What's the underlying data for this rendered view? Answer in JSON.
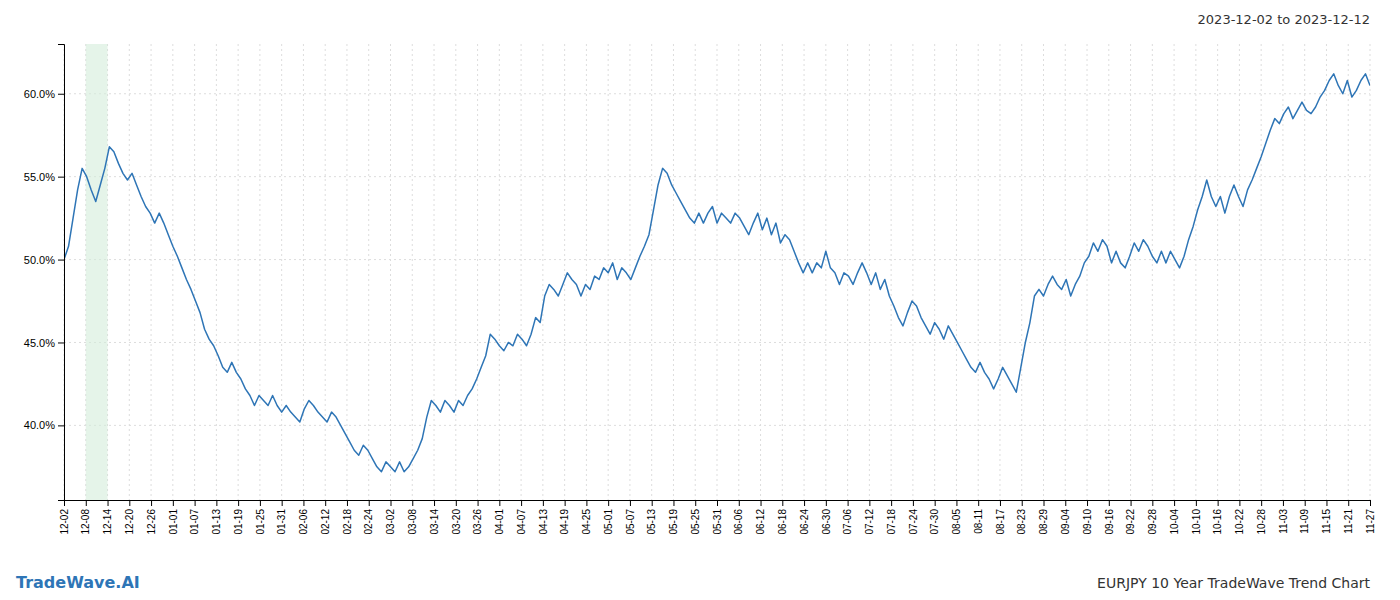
{
  "chart_data": {
    "type": "line",
    "title": "2023-12-02 to 2023-12-12",
    "annotations": [
      "TradeWave.AI",
      "EURJPY 10 Year TradeWave Trend Chart"
    ],
    "color": "#2e75b6",
    "grid": true,
    "highlight": {
      "xstart": 4.8,
      "xend": 9.6,
      "color": "#d4edda"
    },
    "xlim": [
      0,
      288
    ],
    "xticks": [
      {
        "value": 0,
        "label": "12-02"
      },
      {
        "value": 4.8,
        "label": "12-08"
      },
      {
        "value": 9.6,
        "label": "12-14"
      },
      {
        "value": 14.4,
        "label": "12-20"
      },
      {
        "value": 19.2,
        "label": "12-26"
      },
      {
        "value": 24,
        "label": "01-01"
      },
      {
        "value": 28.8,
        "label": "01-07"
      },
      {
        "value": 33.6,
        "label": "01-13"
      },
      {
        "value": 38.4,
        "label": "01-19"
      },
      {
        "value": 43.2,
        "label": "01-25"
      },
      {
        "value": 48,
        "label": "01-31"
      },
      {
        "value": 52.8,
        "label": "02-06"
      },
      {
        "value": 57.6,
        "label": "02-12"
      },
      {
        "value": 62.4,
        "label": "02-18"
      },
      {
        "value": 67.2,
        "label": "02-24"
      },
      {
        "value": 72,
        "label": "03-02"
      },
      {
        "value": 76.8,
        "label": "03-08"
      },
      {
        "value": 81.6,
        "label": "03-14"
      },
      {
        "value": 86.4,
        "label": "03-20"
      },
      {
        "value": 91.2,
        "label": "03-26"
      },
      {
        "value": 96,
        "label": "04-01"
      },
      {
        "value": 100.8,
        "label": "04-07"
      },
      {
        "value": 105.6,
        "label": "04-13"
      },
      {
        "value": 110.4,
        "label": "04-19"
      },
      {
        "value": 115.2,
        "label": "04-25"
      },
      {
        "value": 120,
        "label": "05-01"
      },
      {
        "value": 124.8,
        "label": "05-07"
      },
      {
        "value": 129.6,
        "label": "05-13"
      },
      {
        "value": 134.4,
        "label": "05-19"
      },
      {
        "value": 139.2,
        "label": "05-25"
      },
      {
        "value": 144,
        "label": "05-31"
      },
      {
        "value": 148.8,
        "label": "06-06"
      },
      {
        "value": 153.6,
        "label": "06-12"
      },
      {
        "value": 158.4,
        "label": "06-18"
      },
      {
        "value": 163.2,
        "label": "06-24"
      },
      {
        "value": 168,
        "label": "06-30"
      },
      {
        "value": 172.8,
        "label": "07-06"
      },
      {
        "value": 177.6,
        "label": "07-12"
      },
      {
        "value": 182.4,
        "label": "07-18"
      },
      {
        "value": 187.2,
        "label": "07-24"
      },
      {
        "value": 192,
        "label": "07-30"
      },
      {
        "value": 196.8,
        "label": "08-05"
      },
      {
        "value": 201.6,
        "label": "08-11"
      },
      {
        "value": 206.4,
        "label": "08-17"
      },
      {
        "value": 211.2,
        "label": "08-23"
      },
      {
        "value": 216,
        "label": "08-29"
      },
      {
        "value": 220.8,
        "label": "09-04"
      },
      {
        "value": 225.6,
        "label": "09-10"
      },
      {
        "value": 230.4,
        "label": "09-16"
      },
      {
        "value": 235.2,
        "label": "09-22"
      },
      {
        "value": 240,
        "label": "09-28"
      },
      {
        "value": 244.8,
        "label": "10-04"
      },
      {
        "value": 249.6,
        "label": "10-10"
      },
      {
        "value": 254.4,
        "label": "10-16"
      },
      {
        "value": 259.2,
        "label": "10-22"
      },
      {
        "value": 264,
        "label": "10-28"
      },
      {
        "value": 268.8,
        "label": "11-03"
      },
      {
        "value": 273.6,
        "label": "11-09"
      },
      {
        "value": 278.4,
        "label": "11-15"
      },
      {
        "value": 283.2,
        "label": "11-21"
      },
      {
        "value": 288,
        "label": "11-27"
      }
    ],
    "ylim": [
      35.5,
      63.0
    ],
    "yticks": [
      {
        "value": 40.0,
        "label": "40.0%"
      },
      {
        "value": 45.0,
        "label": "45.0%"
      },
      {
        "value": 50.0,
        "label": "50.0%"
      },
      {
        "value": 55.0,
        "label": "55.0%"
      },
      {
        "value": 60.0,
        "label": "60.0%"
      }
    ],
    "x": [
      0,
      1,
      2,
      3,
      4,
      5,
      6,
      7,
      8,
      9,
      10,
      11,
      12,
      13,
      14,
      15,
      16,
      17,
      18,
      19,
      20,
      21,
      22,
      23,
      24,
      25,
      26,
      27,
      28,
      29,
      30,
      31,
      32,
      33,
      34,
      35,
      36,
      37,
      38,
      39,
      40,
      41,
      42,
      43,
      44,
      45,
      46,
      47,
      48,
      49,
      50,
      51,
      52,
      53,
      54,
      55,
      56,
      57,
      58,
      59,
      60,
      61,
      62,
      63,
      64,
      65,
      66,
      67,
      68,
      69,
      70,
      71,
      72,
      73,
      74,
      75,
      76,
      77,
      78,
      79,
      80,
      81,
      82,
      83,
      84,
      85,
      86,
      87,
      88,
      89,
      90,
      91,
      92,
      93,
      94,
      95,
      96,
      97,
      98,
      99,
      100,
      101,
      102,
      103,
      104,
      105,
      106,
      107,
      108,
      109,
      110,
      111,
      112,
      113,
      114,
      115,
      116,
      117,
      118,
      119,
      120,
      121,
      122,
      123,
      124,
      125,
      126,
      127,
      128,
      129,
      130,
      131,
      132,
      133,
      134,
      135,
      136,
      137,
      138,
      139,
      140,
      141,
      142,
      143,
      144,
      145,
      146,
      147,
      148,
      149,
      150,
      151,
      152,
      153,
      154,
      155,
      156,
      157,
      158,
      159,
      160,
      161,
      162,
      163,
      164,
      165,
      166,
      167,
      168,
      169,
      170,
      171,
      172,
      173,
      174,
      175,
      176,
      177,
      178,
      179,
      180,
      181,
      182,
      183,
      184,
      185,
      186,
      187,
      188,
      189,
      190,
      191,
      192,
      193,
      194,
      195,
      196,
      197,
      198,
      199,
      200,
      201,
      202,
      203,
      204,
      205,
      206,
      207,
      208,
      209,
      210,
      211,
      212,
      213,
      214,
      215,
      216,
      217,
      218,
      219,
      220,
      221,
      222,
      223,
      224,
      225,
      226,
      227,
      228,
      229,
      230,
      231,
      232,
      233,
      234,
      235,
      236,
      237,
      238,
      239,
      240,
      241,
      242,
      243,
      244,
      245,
      246,
      247,
      248,
      249,
      250,
      251,
      252,
      253,
      254,
      255,
      256,
      257,
      258,
      259,
      260,
      261,
      262,
      263,
      264,
      265,
      266,
      267,
      268,
      269,
      270,
      271,
      272,
      273,
      274,
      275,
      276,
      277,
      278,
      279,
      280,
      281,
      282,
      283,
      284,
      285,
      286,
      287,
      288
    ],
    "values": [
      50.0,
      50.8,
      52.5,
      54.2,
      55.5,
      55.0,
      54.2,
      53.5,
      54.5,
      55.5,
      56.8,
      56.5,
      55.8,
      55.2,
      54.8,
      55.2,
      54.5,
      53.8,
      53.2,
      52.8,
      52.2,
      52.8,
      52.2,
      51.5,
      50.8,
      50.2,
      49.5,
      48.8,
      48.2,
      47.5,
      46.8,
      45.8,
      45.2,
      44.8,
      44.2,
      43.5,
      43.2,
      43.8,
      43.2,
      42.8,
      42.2,
      41.8,
      41.2,
      41.8,
      41.5,
      41.2,
      41.8,
      41.2,
      40.8,
      41.2,
      40.8,
      40.5,
      40.2,
      41.0,
      41.5,
      41.2,
      40.8,
      40.5,
      40.2,
      40.8,
      40.5,
      40.0,
      39.5,
      39.0,
      38.5,
      38.2,
      38.8,
      38.5,
      38.0,
      37.5,
      37.2,
      37.8,
      37.5,
      37.2,
      37.8,
      37.2,
      37.5,
      38.0,
      38.5,
      39.2,
      40.5,
      41.5,
      41.2,
      40.8,
      41.5,
      41.2,
      40.8,
      41.5,
      41.2,
      41.8,
      42.2,
      42.8,
      43.5,
      44.2,
      45.5,
      45.2,
      44.8,
      44.5,
      45.0,
      44.8,
      45.5,
      45.2,
      44.8,
      45.5,
      46.5,
      46.2,
      47.8,
      48.5,
      48.2,
      47.8,
      48.5,
      49.2,
      48.8,
      48.5,
      47.8,
      48.5,
      48.2,
      49.0,
      48.8,
      49.5,
      49.2,
      49.8,
      48.8,
      49.5,
      49.2,
      48.8,
      49.5,
      50.2,
      50.8,
      51.5,
      53.0,
      54.5,
      55.5,
      55.2,
      54.5,
      54.0,
      53.5,
      53.0,
      52.5,
      52.2,
      52.8,
      52.2,
      52.8,
      53.2,
      52.2,
      52.8,
      52.5,
      52.2,
      52.8,
      52.5,
      52.0,
      51.5,
      52.2,
      52.8,
      51.8,
      52.5,
      51.5,
      52.2,
      51.0,
      51.5,
      51.2,
      50.5,
      49.8,
      49.2,
      49.8,
      49.2,
      49.8,
      49.5,
      50.5,
      49.5,
      49.2,
      48.5,
      49.2,
      49.0,
      48.5,
      49.2,
      49.8,
      49.2,
      48.5,
      49.2,
      48.2,
      48.8,
      47.8,
      47.2,
      46.5,
      46.0,
      46.8,
      47.5,
      47.2,
      46.5,
      46.0,
      45.5,
      46.2,
      45.8,
      45.2,
      46.0,
      45.5,
      45.0,
      44.5,
      44.0,
      43.5,
      43.2,
      43.8,
      43.2,
      42.8,
      42.2,
      42.8,
      43.5,
      43.0,
      42.5,
      42.0,
      43.5,
      45.0,
      46.2,
      47.8,
      48.2,
      47.8,
      48.5,
      49.0,
      48.5,
      48.2,
      48.8,
      47.8,
      48.5,
      49.0,
      49.8,
      50.2,
      51.0,
      50.5,
      51.2,
      50.8,
      49.8,
      50.5,
      49.8,
      49.5,
      50.2,
      51.0,
      50.5,
      51.2,
      50.8,
      50.2,
      49.8,
      50.5,
      49.8,
      50.5,
      50.0,
      49.5,
      50.2,
      51.2,
      52.0,
      53.0,
      53.8,
      54.8,
      53.8,
      53.2,
      53.8,
      52.8,
      53.8,
      54.5,
      53.8,
      53.2,
      54.2,
      54.8,
      55.5,
      56.2,
      57.0,
      57.8,
      58.5,
      58.2,
      58.8,
      59.2,
      58.5,
      59.0,
      59.5,
      59.0,
      58.8,
      59.2,
      59.8,
      60.2,
      60.8,
      61.2,
      60.5,
      60.0,
      60.8,
      59.8,
      60.2,
      60.8,
      61.2,
      60.5
    ]
  }
}
